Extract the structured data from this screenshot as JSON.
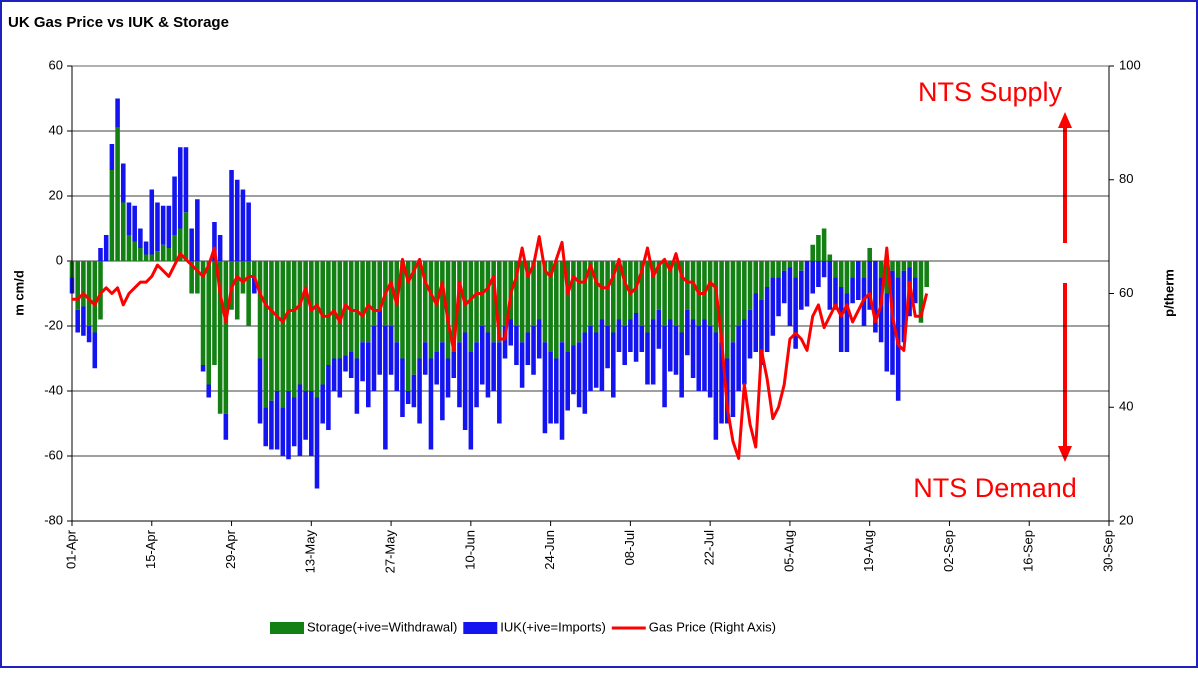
{
  "chart_data": {
    "type": "bar-line",
    "title": "UK Gas Price vs IUK  & Storage",
    "y_label": "m cm/d",
    "y2_label": "p/therm",
    "annotations": [
      "NTS Supply",
      "NTS Demand"
    ],
    "categories": [
      "01-Apr",
      null,
      null,
      null,
      null,
      null,
      null,
      null,
      null,
      null,
      null,
      null,
      null,
      null,
      "15-Apr",
      null,
      null,
      null,
      null,
      null,
      null,
      null,
      null,
      null,
      null,
      null,
      null,
      null,
      "29-Apr",
      null,
      null,
      null,
      null,
      null,
      null,
      null,
      null,
      null,
      null,
      null,
      null,
      null,
      "13-May",
      null,
      null,
      null,
      null,
      null,
      null,
      null,
      null,
      null,
      null,
      null,
      null,
      null,
      "27-May",
      null,
      null,
      null,
      null,
      null,
      null,
      null,
      null,
      null,
      null,
      null,
      null,
      null,
      "10-Jun",
      null,
      null,
      null,
      null,
      null,
      null,
      null,
      null,
      null,
      null,
      null,
      null,
      null,
      "24-Jun",
      null,
      null,
      null,
      null,
      null,
      null,
      null,
      null,
      null,
      null,
      null,
      null,
      null,
      "08-Jul",
      null,
      null,
      null,
      null,
      null,
      null,
      null,
      null,
      null,
      null,
      null,
      null,
      null,
      "22-Jul",
      null,
      null,
      null,
      null,
      null,
      null,
      null,
      null,
      null,
      null,
      null,
      null,
      null,
      "05-Aug",
      null,
      null,
      null,
      null,
      null,
      null,
      null,
      null,
      null,
      null,
      null,
      null,
      null,
      "19-Aug",
      null,
      null,
      null,
      null,
      null,
      null,
      null,
      null,
      null,
      null,
      null,
      null,
      null,
      "02-Sep",
      null,
      null,
      null,
      null,
      null,
      null,
      null,
      null,
      null,
      null,
      null,
      null,
      null,
      "16-Sep",
      null,
      null,
      null,
      null,
      null,
      null,
      null,
      null,
      null,
      null,
      null,
      null,
      null,
      "30-Sep"
    ],
    "series": [
      {
        "name": "Storage(+ive=Withdrawal)",
        "color": "#128012",
        "kind": "bar",
        "values": [
          -5,
          -15,
          -14,
          -20,
          -22,
          -18,
          0,
          28,
          41,
          18,
          8,
          6,
          4,
          2,
          2,
          3,
          5,
          4,
          8,
          10,
          15,
          -10,
          -10,
          -32,
          -38,
          -32,
          -47,
          -47,
          -15,
          -18,
          -10,
          -20,
          -5,
          -30,
          -45,
          -43,
          -40,
          -45,
          -40,
          -42,
          -38,
          -40,
          -40,
          -42,
          -38,
          -32,
          -30,
          -30,
          -29,
          -28,
          -30,
          -25,
          -25,
          -20,
          -15,
          -20,
          -20,
          -25,
          -30,
          -40,
          -35,
          -30,
          -25,
          -30,
          -28,
          -25,
          -30,
          -28,
          -25,
          -22,
          -28,
          -25,
          -20,
          -22,
          -25,
          -25,
          -20,
          -18,
          -20,
          -25,
          -22,
          -20,
          -18,
          -25,
          -28,
          -30,
          -25,
          -28,
          -26,
          -25,
          -22,
          -20,
          -22,
          -18,
          -20,
          -22,
          -18,
          -20,
          -18,
          -16,
          -20,
          -22,
          -18,
          -15,
          -20,
          -18,
          -20,
          -22,
          -15,
          -18,
          -20,
          -18,
          -20,
          -22,
          -25,
          -30,
          -25,
          -20,
          -18,
          -15,
          -10,
          -12,
          -8,
          -5,
          -5,
          -3,
          -2,
          -5,
          -3,
          0,
          5,
          8,
          10,
          2,
          -5,
          -8,
          -10,
          -5,
          0,
          -5,
          4,
          0,
          -5,
          -10,
          -3,
          -5,
          -3,
          -2,
          -5,
          -19,
          -8,
          null,
          null,
          null,
          null,
          null,
          null,
          null,
          null,
          null,
          null,
          null,
          null,
          null,
          null,
          null,
          null,
          null,
          null,
          null,
          null,
          null,
          null,
          null,
          null,
          null,
          null,
          null,
          null,
          null,
          null,
          null,
          null
        ]
      },
      {
        "name": "IUK(+ive=Imports)",
        "color": "#1414f0",
        "kind": "bar",
        "values": [
          -5,
          -7,
          -9,
          -5,
          -11,
          4,
          8,
          8,
          9,
          12,
          10,
          11,
          6,
          4,
          20,
          15,
          12,
          13,
          18,
          25,
          20,
          10,
          19,
          -2,
          -4,
          12,
          8,
          -8,
          28,
          25,
          22,
          18,
          -5,
          -20,
          -12,
          -15,
          -18,
          -15,
          -21,
          -15,
          -22,
          -15,
          -20,
          -28,
          -12,
          -20,
          -10,
          -12,
          -5,
          -8,
          -17,
          -12,
          -20,
          -20,
          -20,
          -38,
          -15,
          -15,
          -18,
          -4,
          -10,
          -20,
          -10,
          -28,
          -10,
          -24,
          -12,
          -8,
          -20,
          -30,
          -30,
          -20,
          -18,
          -20,
          -15,
          -25,
          -10,
          -8,
          -12,
          -14,
          -10,
          -15,
          -12,
          -28,
          -22,
          -20,
          -30,
          -18,
          -15,
          -20,
          -25,
          -20,
          -17,
          -22,
          -13,
          -20,
          -10,
          -12,
          -10,
          -15,
          -8,
          -16,
          -20,
          -12,
          -25,
          -16,
          -15,
          -20,
          -14,
          -18,
          -20,
          -22,
          -22,
          -33,
          -25,
          -20,
          -23,
          -20,
          -20,
          -15,
          -18,
          -20,
          -20,
          -18,
          -12,
          -10,
          -18,
          -22,
          -12,
          -14,
          -10,
          -8,
          -5,
          -15,
          -10,
          -20,
          -18,
          -8,
          -12,
          -15,
          -15,
          -22,
          -20,
          -24,
          -32,
          -38,
          -22,
          -15,
          -8,
          0,
          0,
          null,
          null,
          null,
          null,
          null,
          null,
          null,
          null,
          null,
          null,
          null,
          null,
          null,
          null,
          null,
          null,
          null,
          null,
          null,
          null,
          null,
          null,
          null,
          null,
          null,
          null,
          null,
          null,
          null,
          null,
          null,
          null
        ]
      },
      {
        "name": "Gas Price (Right Axis)",
        "color": "#ff0000",
        "kind": "line",
        "axis": "y2",
        "values": [
          59,
          59,
          60,
          59,
          58,
          60,
          61,
          60,
          61,
          58,
          60,
          61,
          62,
          62,
          63,
          65,
          64,
          63,
          65,
          67,
          66,
          65,
          64,
          63,
          65,
          68,
          60,
          55,
          61,
          63,
          62,
          63,
          63,
          60,
          58,
          57,
          56,
          55,
          57,
          57,
          58,
          61,
          57,
          58,
          56,
          56,
          57,
          55,
          58,
          57,
          57,
          56,
          58,
          57,
          57,
          60,
          62,
          58,
          66,
          62,
          64,
          66,
          62,
          60,
          58,
          62,
          55,
          50,
          62,
          58,
          59,
          60,
          60,
          61,
          63,
          52,
          52,
          60,
          63,
          68,
          63,
          65,
          70,
          64,
          63,
          66,
          69,
          60,
          63,
          62,
          62,
          65,
          62,
          61,
          61,
          63,
          66,
          62,
          60,
          61,
          64,
          68,
          63,
          65,
          66,
          64,
          67,
          63,
          62,
          62,
          60,
          60,
          62,
          61,
          52,
          40,
          34,
          31,
          44,
          37,
          33,
          50,
          45,
          38,
          40,
          44,
          52,
          53,
          52,
          50,
          56,
          58,
          54,
          56,
          58,
          56,
          58,
          55,
          57,
          59,
          60,
          55,
          58,
          68,
          56,
          51,
          50,
          62,
          56,
          56,
          60,
          null,
          null,
          null,
          null,
          null,
          null,
          null,
          null,
          null,
          null,
          null,
          null,
          null,
          null,
          null,
          null,
          null,
          null,
          null,
          null,
          null,
          null,
          null,
          null,
          null,
          null,
          null,
          null,
          null,
          null,
          null,
          null
        ]
      }
    ],
    "ylim": [
      -80,
      60
    ],
    "yticks": [
      -80,
      -60,
      -40,
      -20,
      0,
      20,
      40,
      60
    ],
    "y2lim": [
      20,
      100
    ],
    "y2ticks": [
      20,
      40,
      60,
      80,
      100
    ],
    "grid": true,
    "legend": "bottom"
  }
}
